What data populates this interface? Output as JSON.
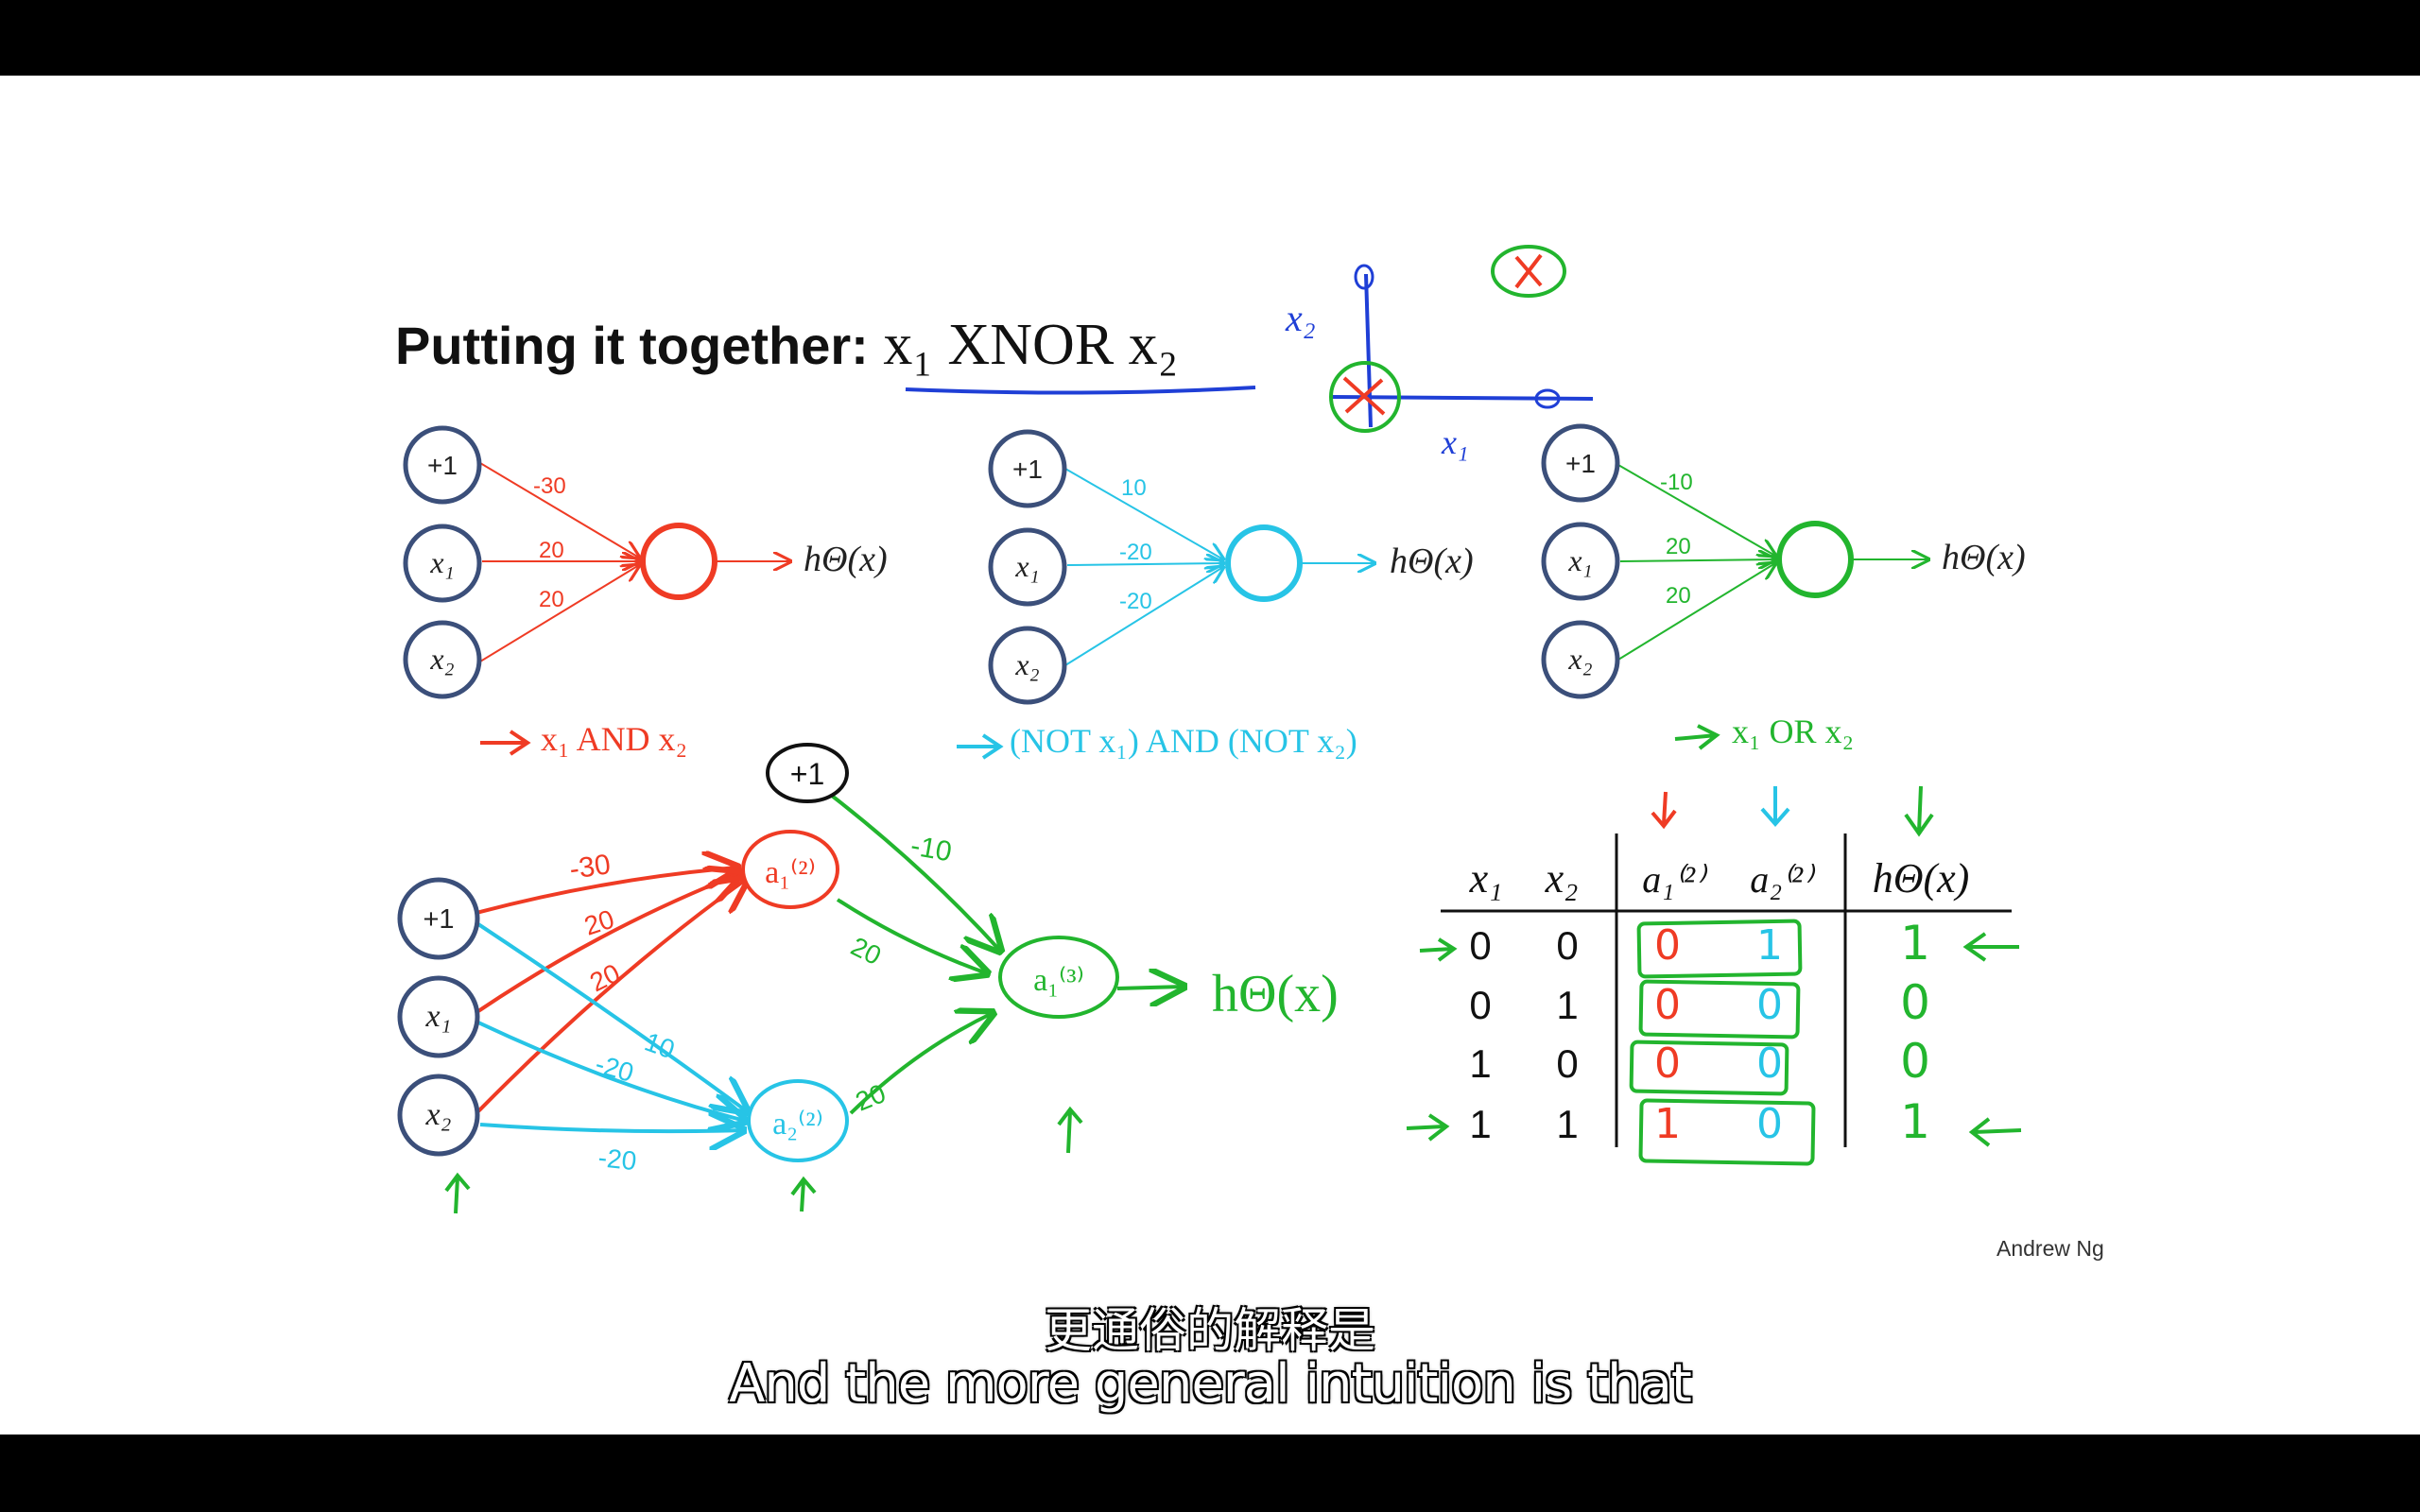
{
  "slide": {
    "title_prefix": "Putting it together:",
    "title_math": "x₁ XNOR x₂",
    "credit": "Andrew Ng"
  },
  "network_labels": {
    "bias": "+1",
    "x1": "x₁",
    "x2": "x₂",
    "output": "hΘ(x)"
  },
  "networks": [
    {
      "caption": "x₁ AND x₂",
      "weights": [
        "-30",
        "20",
        "20"
      ],
      "color": "#ef3b24"
    },
    {
      "caption": "(NOT x₁) AND (NOT x₂)",
      "weights": [
        "10",
        "-20",
        "-20"
      ],
      "color": "#27c4e6"
    },
    {
      "caption": "x₁ OR x₂",
      "weights": [
        "-10",
        "20",
        "20"
      ],
      "color": "#22b52e"
    }
  ],
  "combined_network": {
    "bias_top": "+1",
    "node_a1": "a₁⁽²⁾",
    "node_a2": "a₂⁽²⁾",
    "node_a3": "a₁⁽³⁾",
    "output": "hΘ(x)",
    "red_weights": [
      "-30",
      "20",
      "20"
    ],
    "blue_weights": [
      "10",
      "-20",
      "-20"
    ],
    "green_weights": [
      "-10",
      "20",
      "20"
    ]
  },
  "truth_table": {
    "headers": [
      "x₁",
      "x₂",
      "a₁⁽²⁾",
      "a₂⁽²⁾",
      "hΘ(x)"
    ],
    "rows": [
      [
        "0",
        "0",
        "0",
        "1",
        "1"
      ],
      [
        "0",
        "1",
        "0",
        "0",
        "0"
      ],
      [
        "1",
        "0",
        "0",
        "0",
        "0"
      ],
      [
        "1",
        "1",
        "1",
        "0",
        "1"
      ]
    ]
  },
  "sketch_axes": {
    "x_label": "x₁",
    "y_label": "x₂"
  },
  "subtitles": {
    "zh": "更通俗的解释是",
    "en": "And the more general intuition is that"
  },
  "colors": {
    "red": "#ef3b24",
    "cyan": "#27c4e6",
    "green": "#22b52e",
    "node": "#3b4f7a",
    "blue_ink": "#1f3fd6"
  }
}
